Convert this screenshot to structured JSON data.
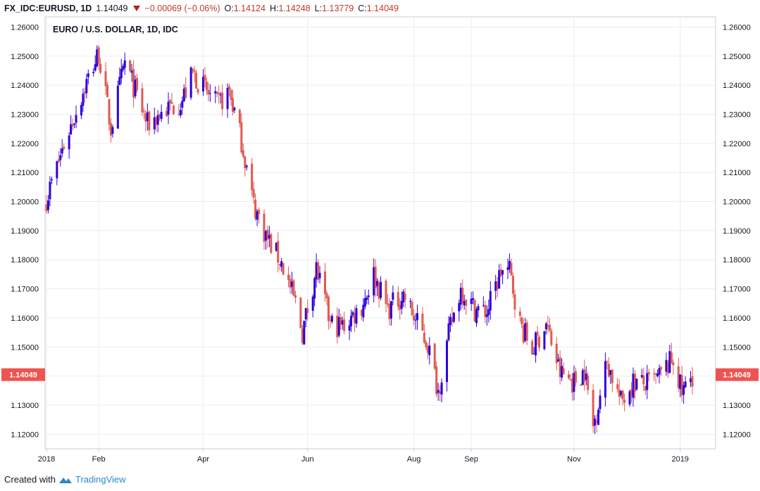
{
  "header": {
    "symbol": "FX_IDC:EURUSD, 1D",
    "last": "1.14049",
    "change": "−0.00069 (−0.06%)",
    "open_label": "O:",
    "open": "1.14124",
    "high_label": "H:",
    "high": "1.14248",
    "low_label": "L:",
    "low": "1.13779",
    "close_label": "C:",
    "close": "1.14049"
  },
  "footer": {
    "created_with": "Created with",
    "brand": "TradingView"
  },
  "colors": {
    "up": "#2c00e0",
    "down": "#e05a50",
    "grid": "#e9edf3",
    "axis": "#c9ccd2",
    "price_tag": "#ef5350"
  },
  "chart_data": {
    "type": "candlestick",
    "title": "EURO / U.S. DOLLAR, 1D, IDC",
    "ylim": [
      1.115,
      1.2635
    ],
    "yticks": [
      "1.26000",
      "1.25000",
      "1.24000",
      "1.23000",
      "1.22000",
      "1.21000",
      "1.20000",
      "1.19000",
      "1.18000",
      "1.17000",
      "1.16000",
      "1.15000",
      "1.14000",
      "1.13000",
      "1.12000"
    ],
    "xlim": [
      "2018-01-02",
      "2019-01-08"
    ],
    "xticks": [
      {
        "label": "2018",
        "date": "2018-01-02"
      },
      {
        "label": "Feb",
        "date": "2018-02-01"
      },
      {
        "label": "Apr",
        "date": "2018-04-02"
      },
      {
        "label": "Jun",
        "date": "2018-06-01"
      },
      {
        "label": "Aug",
        "date": "2018-08-01"
      },
      {
        "label": "Sep",
        "date": "2018-09-03"
      },
      {
        "label": "Nov",
        "date": "2018-11-01"
      },
      {
        "label": "2019",
        "date": "2019-01-01"
      }
    ],
    "grid": true,
    "last_price": "1.14049",
    "series_close": [
      {
        "date": "2018-01-02",
        "close": 1.201
      },
      {
        "date": "2018-01-12",
        "close": 1.2195
      },
      {
        "date": "2018-01-25",
        "close": 1.241
      },
      {
        "date": "2018-02-01",
        "close": 1.251
      },
      {
        "date": "2018-02-08",
        "close": 1.225
      },
      {
        "date": "2018-02-16",
        "close": 1.248
      },
      {
        "date": "2018-03-01",
        "close": 1.2265
      },
      {
        "date": "2018-03-09",
        "close": 1.2305
      },
      {
        "date": "2018-03-21",
        "close": 1.235
      },
      {
        "date": "2018-03-27",
        "close": 1.244
      },
      {
        "date": "2018-04-10",
        "close": 1.233
      },
      {
        "date": "2018-04-17",
        "close": 1.238
      },
      {
        "date": "2018-04-24",
        "close": 1.221
      },
      {
        "date": "2018-05-01",
        "close": 1.199
      },
      {
        "date": "2018-05-09",
        "close": 1.187
      },
      {
        "date": "2018-05-17",
        "close": 1.179
      },
      {
        "date": "2018-05-25",
        "close": 1.165
      },
      {
        "date": "2018-05-29",
        "close": 1.155
      },
      {
        "date": "2018-06-06",
        "close": 1.177
      },
      {
        "date": "2018-06-14",
        "close": 1.158
      },
      {
        "date": "2018-06-21",
        "close": 1.157
      },
      {
        "date": "2018-07-02",
        "close": 1.164
      },
      {
        "date": "2018-07-09",
        "close": 1.175
      },
      {
        "date": "2018-07-17",
        "close": 1.163
      },
      {
        "date": "2018-07-26",
        "close": 1.168
      },
      {
        "date": "2018-08-02",
        "close": 1.159
      },
      {
        "date": "2018-08-09",
        "close": 1.151
      },
      {
        "date": "2018-08-15",
        "close": 1.135
      },
      {
        "date": "2018-08-22",
        "close": 1.157
      },
      {
        "date": "2018-08-28",
        "close": 1.17
      },
      {
        "date": "2018-09-05",
        "close": 1.163
      },
      {
        "date": "2018-09-12",
        "close": 1.162
      },
      {
        "date": "2018-09-20",
        "close": 1.176
      },
      {
        "date": "2018-09-25",
        "close": 1.176
      },
      {
        "date": "2018-10-01",
        "close": 1.158
      },
      {
        "date": "2018-10-08",
        "close": 1.149
      },
      {
        "date": "2018-10-16",
        "close": 1.158
      },
      {
        "date": "2018-10-24",
        "close": 1.141
      },
      {
        "date": "2018-11-01",
        "close": 1.138
      },
      {
        "date": "2018-11-07",
        "close": 1.142
      },
      {
        "date": "2018-11-12",
        "close": 1.1225
      },
      {
        "date": "2018-11-20",
        "close": 1.145
      },
      {
        "date": "2018-11-28",
        "close": 1.131
      },
      {
        "date": "2018-12-05",
        "close": 1.138
      },
      {
        "date": "2018-12-12",
        "close": 1.137
      },
      {
        "date": "2018-12-19",
        "close": 1.139
      },
      {
        "date": "2018-12-28",
        "close": 1.146
      },
      {
        "date": "2019-01-02",
        "close": 1.134
      },
      {
        "date": "2019-01-08",
        "close": 1.1405
      }
    ]
  }
}
